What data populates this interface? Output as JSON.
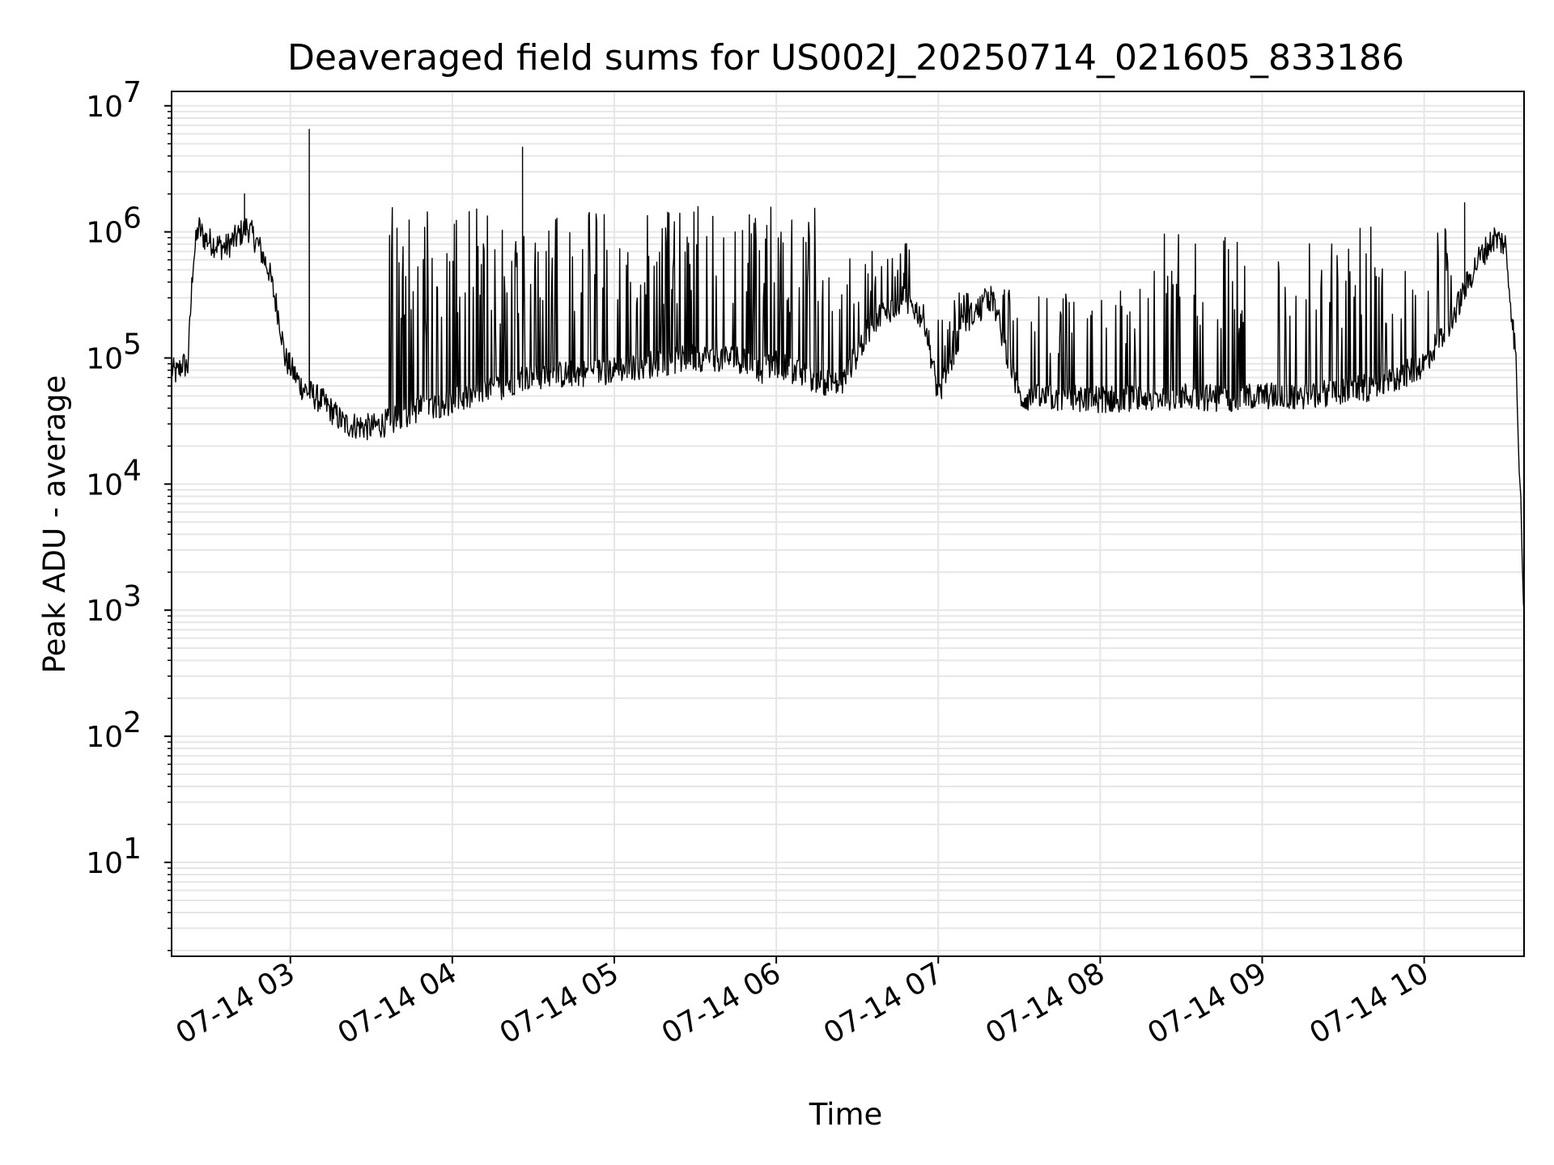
{
  "chart_data": {
    "type": "line",
    "title": "Deaveraged field sums for US002J_20250714_021605_833186",
    "xlabel": "Time",
    "ylabel": "Peak ADU - average",
    "yscale": "log",
    "ylim": [
      1.8,
      13000000
    ],
    "xlim": [
      "2025-07-14 02:16",
      "2025-07-14 10:37"
    ],
    "grid": true,
    "line_color": "#000000",
    "grid_color": "#e6e6e6",
    "x_ticks": [
      {
        "x": "2025-07-14 03:00",
        "label": "07-14 03"
      },
      {
        "x": "2025-07-14 04:00",
        "label": "07-14 04"
      },
      {
        "x": "2025-07-14 05:00",
        "label": "07-14 05"
      },
      {
        "x": "2025-07-14 06:00",
        "label": "07-14 06"
      },
      {
        "x": "2025-07-14 07:00",
        "label": "07-14 07"
      },
      {
        "x": "2025-07-14 08:00",
        "label": "07-14 08"
      },
      {
        "x": "2025-07-14 09:00",
        "label": "07-14 09"
      },
      {
        "x": "2025-07-14 10:00",
        "label": "07-14 10"
      }
    ],
    "y_ticks": [
      {
        "value": 10,
        "base": "10",
        "exp": "1"
      },
      {
        "value": 100,
        "base": "10",
        "exp": "2"
      },
      {
        "value": 1000,
        "base": "10",
        "exp": "3"
      },
      {
        "value": 10000,
        "base": "10",
        "exp": "4"
      },
      {
        "value": 100000,
        "base": "10",
        "exp": "5"
      },
      {
        "value": 1000000,
        "base": "10",
        "exp": "6"
      },
      {
        "value": 10000000,
        "base": "10",
        "exp": "7"
      }
    ],
    "series": [
      {
        "x": [
          "2025-07-14 02:16",
          "2025-07-14 02:18",
          "2025-07-14 02:20",
          "2025-07-14 02:22",
          "2025-07-14 02:24",
          "2025-07-14 02:26",
          "2025-07-14 02:28",
          "2025-07-14 02:32",
          "2025-07-14 02:36",
          "2025-07-14 02:40",
          "2025-07-14 02:44",
          "2025-07-14 02:48",
          "2025-07-14 02:52",
          "2025-07-14 02:56",
          "2025-07-14 02:58",
          "2025-07-14 03:04",
          "2025-07-14 03:06",
          "2025-07-14 03:12",
          "2025-07-14 03:20",
          "2025-07-14 03:30",
          "2025-07-14 03:38",
          "2025-07-14 03:45",
          "2025-07-14 03:52",
          "2025-07-14 04:00",
          "2025-07-14 04:15",
          "2025-07-14 04:26",
          "2025-07-14 04:45",
          "2025-07-14 05:00",
          "2025-07-14 05:15",
          "2025-07-14 05:30",
          "2025-07-14 05:45",
          "2025-07-14 05:55",
          "2025-07-14 06:00",
          "2025-07-14 06:12",
          "2025-07-14 06:24",
          "2025-07-14 06:36",
          "2025-07-14 06:48",
          "2025-07-14 06:55",
          "2025-07-14 07:00",
          "2025-07-14 07:10",
          "2025-07-14 07:16",
          "2025-07-14 07:20",
          "2025-07-14 07:30",
          "2025-07-14 07:45",
          "2025-07-14 08:00",
          "2025-07-14 08:15",
          "2025-07-14 08:30",
          "2025-07-14 08:45",
          "2025-07-14 09:00",
          "2025-07-14 09:15",
          "2025-07-14 09:30",
          "2025-07-14 09:45",
          "2025-07-14 10:00",
          "2025-07-14 10:10",
          "2025-07-14 10:20",
          "2025-07-14 10:26",
          "2025-07-14 10:30",
          "2025-07-14 10:34",
          "2025-07-14 10:36",
          "2025-07-14 10:37"
        ],
        "y": [
          80000,
          75000,
          90000,
          85000,
          600000,
          1100000,
          900000,
          800000,
          750000,
          900000,
          1100000,
          800000,
          500000,
          200000,
          100000,
          60000,
          55000,
          45000,
          30000,
          28000,
          32000,
          38000,
          42000,
          45000,
          55000,
          70000,
          75000,
          80000,
          90000,
          100000,
          100000,
          80000,
          90000,
          70000,
          60000,
          200000,
          300000,
          200000,
          50000,
          200000,
          250000,
          300000,
          48000,
          48000,
          47000,
          48000,
          50000,
          48000,
          50000,
          50000,
          55000,
          60000,
          90000,
          200000,
          600000,
          900000,
          800000,
          100000,
          40000,
          1500
        ]
      }
    ],
    "spikes": [
      {
        "x": "2025-07-14 03:07",
        "y": 6500000
      },
      {
        "x": "2025-07-14 04:26",
        "y": 4700000
      },
      {
        "x": "2025-07-14 02:43",
        "y": 2000000
      },
      {
        "x": "2025-07-14 10:15",
        "y": 1700000
      }
    ]
  }
}
